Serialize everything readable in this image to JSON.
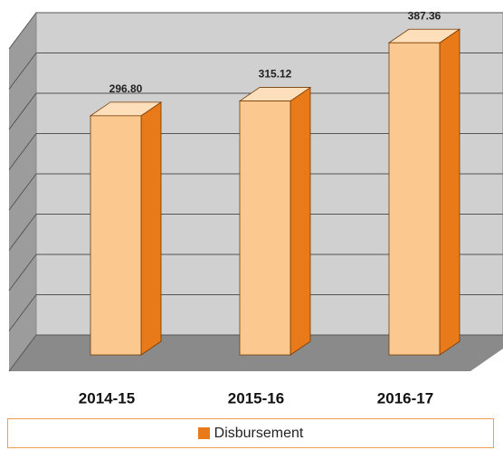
{
  "chart_data": {
    "type": "bar3d",
    "categories": [
      "2014-15",
      "2015-16",
      "2016-17"
    ],
    "series": [
      {
        "name": "Disbursement",
        "color": "#e87a1a",
        "values": [
          296.8,
          315.12,
          387.36
        ],
        "value_labels": [
          "296.80",
          "315.12",
          "387.36"
        ]
      }
    ],
    "ylim": [
      0,
      400
    ],
    "yticks": [
      0,
      50,
      100,
      150,
      200,
      250,
      300,
      350,
      400
    ],
    "grid": true,
    "legend": "bottom"
  }
}
